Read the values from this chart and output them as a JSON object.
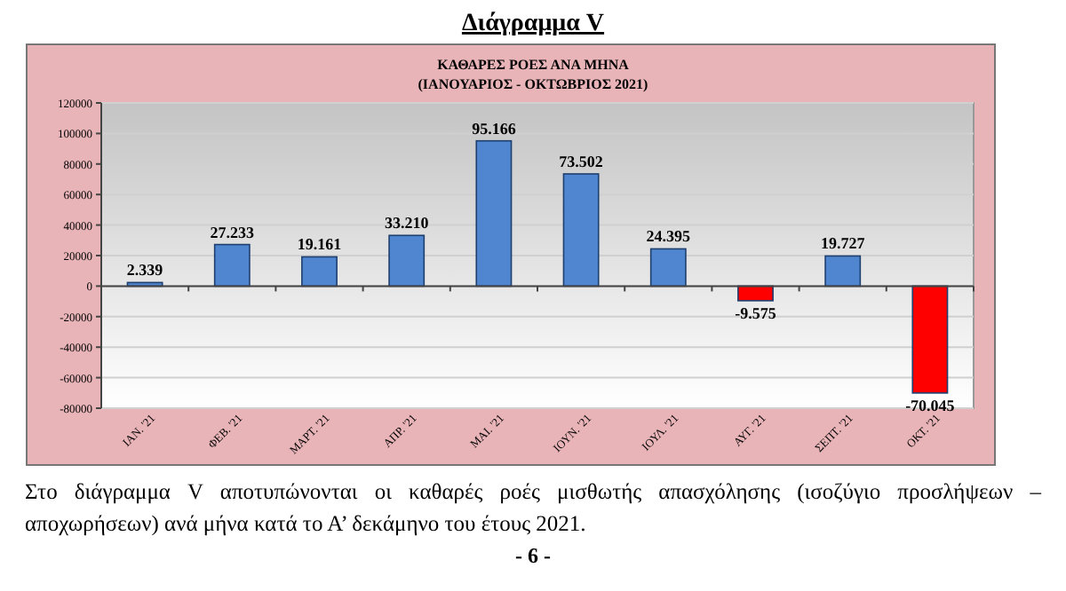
{
  "chart_data": {
    "type": "bar",
    "title": "Διάγραμμα V",
    "subtitle": "ΚΑΘΑΡΕΣ ΡΟΕΣ ΑΝΑ ΜΗΝΑ\n(ΙΑΝΟΥΑΡΙΟΣ -  ΟΚΤΩΒΡΙΟΣ 2021)",
    "categories": [
      "ΙΑΝ. '21",
      "ΦΕΒ. '21",
      "ΜΑΡΤ. '21",
      "ΑΠΡ. '21",
      "ΜΑΙ. '21",
      "ΙΟΥΝ. '21",
      "ΙΟΥΛ. '21",
      "ΑΥΓ. '21",
      "ΣΕΠΤ. '21",
      "ΟΚΤ. '21"
    ],
    "values": [
      2339,
      27233,
      19161,
      33210,
      95166,
      73502,
      24395,
      -9575,
      19727,
      -70045
    ],
    "value_labels": [
      "2.339",
      "27.233",
      "19.161",
      "33.210",
      "95.166",
      "73.502",
      "24.395",
      "-9.575",
      "19.727",
      "-70.045"
    ],
    "colors": [
      "#4f86cf",
      "#4f86cf",
      "#4f86cf",
      "#4f86cf",
      "#4f86cf",
      "#4f86cf",
      "#4f86cf",
      "#ff0000",
      "#4f86cf",
      "#ff0000"
    ],
    "ylim": [
      -80000,
      120000
    ],
    "yticks": [
      -80000,
      -60000,
      -40000,
      -20000,
      0,
      20000,
      40000,
      60000,
      80000,
      100000,
      120000
    ],
    "grid": "y",
    "annotations": [
      "Στο  διάγραμμα V αποτυπώνονται οι καθαρές ροές μισθωτής απασχόλησης (ισοζύγιο προσλήψεων – αποχωρήσεων) ανά μήνα κατά το Α’ δεκάμηνο του έτους 2021.",
      "- 6 -"
    ]
  }
}
